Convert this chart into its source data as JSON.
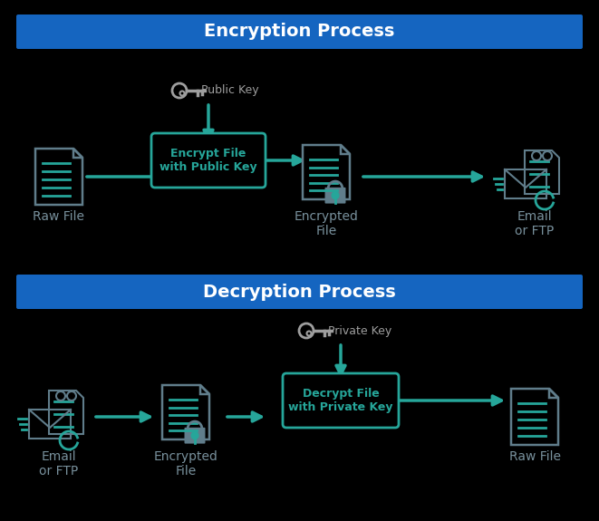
{
  "bg_color": "#000000",
  "header_color": "#1565C0",
  "header_text_color": "#FFFFFF",
  "arrow_color": "#26A69A",
  "icon_color": "#607D8B",
  "line_color": "#607D8B",
  "green_color": "#26A69A",
  "box_border_color": "#26A69A",
  "box_bg_color": "#000000",
  "box_text_color": "#26A69A",
  "label_color": "#78909C",
  "key_color": "#9E9E9E",
  "enc_header": "Encryption Process",
  "dec_header": "Decryption Process",
  "enc_labels": [
    "Raw File",
    "Encrypt File\nwith Public Key",
    "Encrypted\nFile",
    "Email\nor FTP"
  ],
  "dec_labels": [
    "Email\nor FTP",
    "Encrypted\nFile",
    "Decrypt File\nwith Private Key",
    "Raw File"
  ],
  "public_key_label": "Public Key",
  "private_key_label": "Private Key"
}
